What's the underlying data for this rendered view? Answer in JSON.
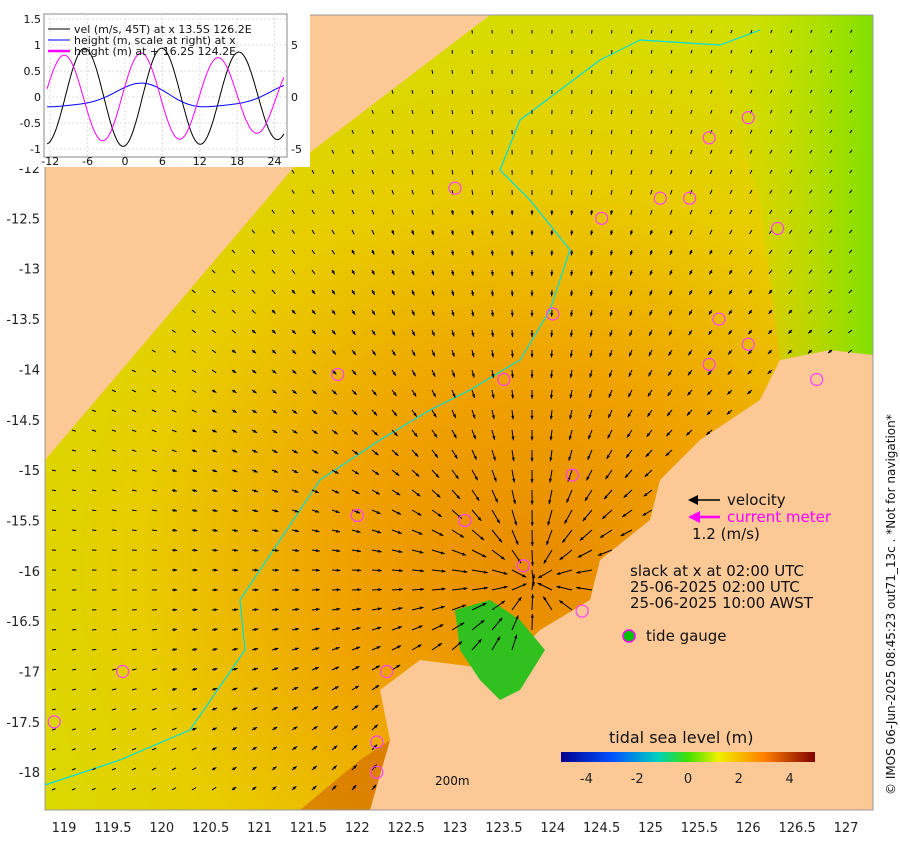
{
  "inset": {
    "legend": [
      "vel (m/s, 45T) at x 13.5S 126.2E",
      "height (m, scale at right) at x",
      "height (m) at + 16.2S 124.2E"
    ],
    "left_ticks": [
      "1.5",
      "1",
      "0.5",
      "0",
      "-0.5",
      "-1"
    ],
    "right_ticks": [
      "5",
      "0",
      "-5"
    ],
    "x_ticks": [
      "-12",
      "-6",
      "0",
      "6",
      "12",
      "18",
      "24"
    ],
    "colors": {
      "vel": "#000000",
      "height_x": "#0000ff",
      "height_plus": "#ff00ff"
    }
  },
  "axes": {
    "x_ticks": [
      "119",
      "119.5",
      "120",
      "120.5",
      "121",
      "121.5",
      "122",
      "122.5",
      "123",
      "123.5",
      "124",
      "124.5",
      "125",
      "125.5",
      "126",
      "126.5",
      "127"
    ],
    "y_ticks": [
      "-12",
      "-12.5",
      "-13",
      "-13.5",
      "-14",
      "-14.5",
      "-15",
      "-15.5",
      "-16",
      "-16.5",
      "-17",
      "-17.5",
      "-18"
    ]
  },
  "legend": {
    "velocity": "velocity",
    "current_meter": "current meter",
    "scale": "1.2 (m/s)",
    "slack": "slack at x at 02:00 UTC",
    "utc": "25-06-2025 02:00 UTC",
    "awst": "25-06-2025 10:00 AWST",
    "tide_gauge": "tide gauge",
    "depth_contour": "200m"
  },
  "colorbar": {
    "title": "tidal sea level (m)",
    "ticks": [
      "-4",
      "-2",
      "0",
      "2",
      "4"
    ],
    "range": [
      -5,
      5
    ]
  },
  "credit": "© IMOS 06-Jun-2025 08:45:23 out71_13c . *Not for navigation*",
  "tide_gauges": [
    [
      126,
      -11.5
    ],
    [
      125.6,
      -11.7
    ],
    [
      125.1,
      -12.3
    ],
    [
      125.4,
      -12.3
    ],
    [
      123,
      -12.2
    ],
    [
      124.5,
      -12.5
    ],
    [
      126.3,
      -12.6
    ],
    [
      124,
      -13.45
    ],
    [
      125.7,
      -13.5
    ],
    [
      126,
      -13.75
    ],
    [
      125.6,
      -13.95
    ],
    [
      126.7,
      -14.1
    ],
    [
      123.5,
      -14.1
    ],
    [
      121.8,
      -14.05
    ],
    [
      122,
      -15.45
    ],
    [
      123.1,
      -15.5
    ],
    [
      124.2,
      -15.05
    ],
    [
      123.7,
      -15.95
    ],
    [
      124.3,
      -16.4
    ],
    [
      122.3,
      -17
    ],
    [
      119.6,
      -17
    ],
    [
      118.9,
      -17.5
    ],
    [
      122.2,
      -17.7
    ],
    [
      122.2,
      -18
    ]
  ]
}
